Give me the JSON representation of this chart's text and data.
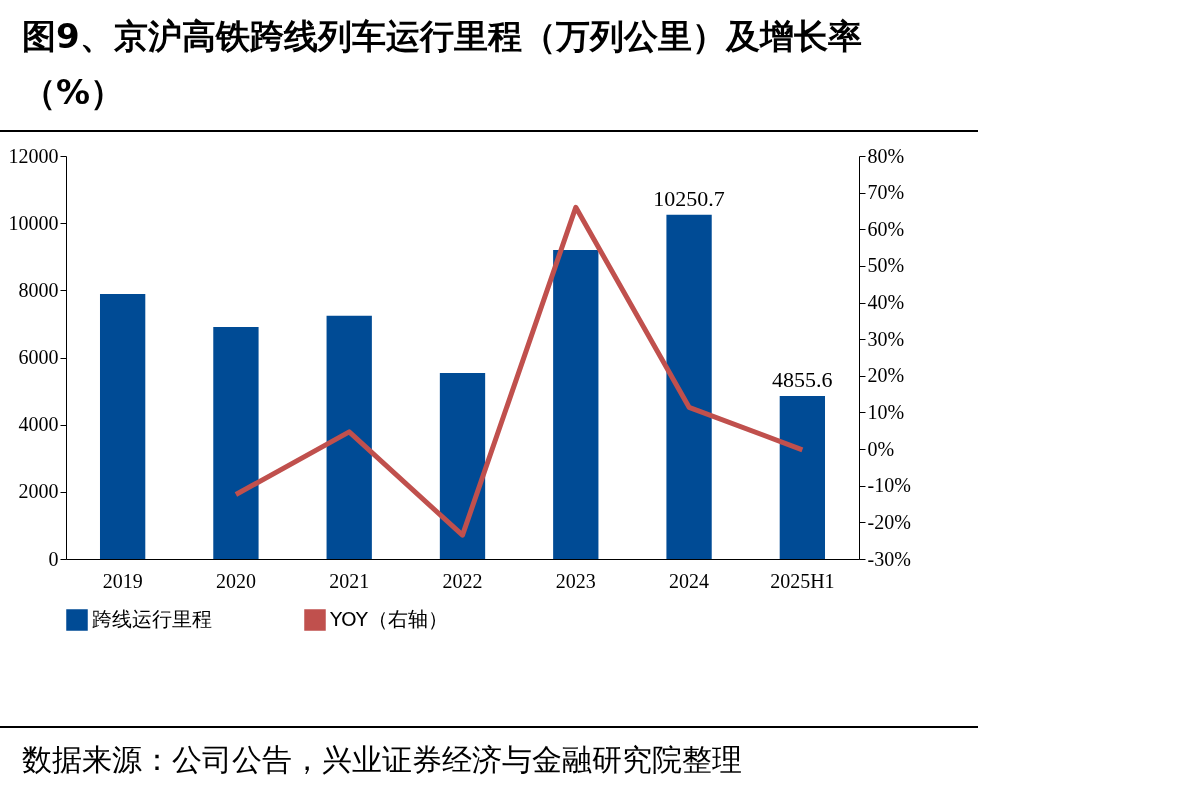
{
  "chart_data": {
    "type": "bar",
    "title": "图9、京沪高铁跨线列车运行里程（万列公里）及增长率（%）",
    "categories": [
      "2019",
      "2020",
      "2021",
      "2022",
      "2023",
      "2024",
      "2025H1"
    ],
    "series": [
      {
        "name": "跨线运行里程",
        "color": "#004b95",
        "values": [
          7890,
          6910,
          7240,
          5540,
          9200,
          10250.7,
          4855.6
        ],
        "value_labels": [
          null,
          null,
          null,
          null,
          null,
          "10250.7",
          "4855.6"
        ]
      },
      {
        "name": "YOY（右轴）",
        "type": "line",
        "axis": "y2",
        "color": "#c0504d",
        "values": [
          null,
          -12.4,
          4.7,
          -23.5,
          66,
          11.4,
          -0.2
        ]
      }
    ],
    "ylim": [
      0,
      12000
    ],
    "yticks": [
      0,
      2000,
      4000,
      6000,
      8000,
      10000,
      12000
    ],
    "y2lim": [
      -30,
      80
    ],
    "y2ticks": [
      {
        "value": -30,
        "label": "-30%"
      },
      {
        "value": -20,
        "label": "-20%"
      },
      {
        "value": -10,
        "label": "-10%"
      },
      {
        "value": 0,
        "label": "0%"
      },
      {
        "value": 10,
        "label": "10%"
      },
      {
        "value": 20,
        "label": "20%"
      },
      {
        "value": 30,
        "label": "30%"
      },
      {
        "value": 40,
        "label": "40%"
      },
      {
        "value": 50,
        "label": "50%"
      },
      {
        "value": 60,
        "label": "60%"
      },
      {
        "value": 70,
        "label": "70%"
      },
      {
        "value": 80,
        "label": "80%"
      }
    ],
    "legend": "bottom",
    "grid": false,
    "annotations": [
      "数据来源：公司公告，兴业证券经济与金融研究院整理"
    ]
  }
}
